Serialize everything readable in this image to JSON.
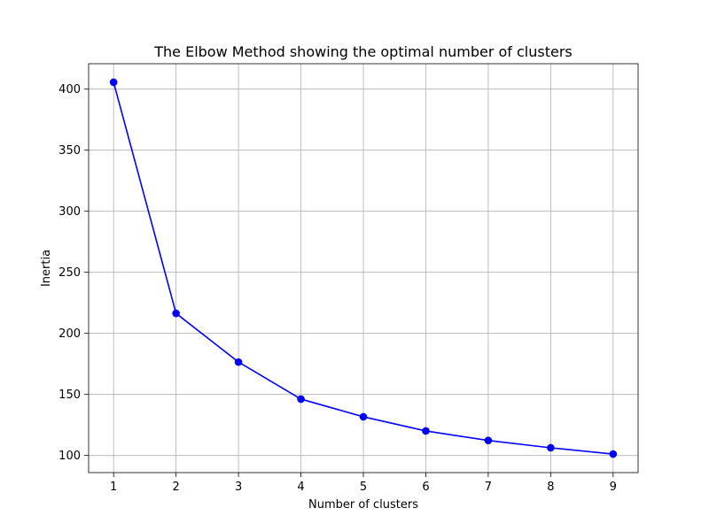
{
  "chart_data": {
    "type": "line",
    "title": "The Elbow Method showing the optimal number of clusters",
    "xlabel": "Number of clusters",
    "ylabel": "Inertia",
    "x": [
      1,
      2,
      3,
      4,
      5,
      6,
      7,
      8,
      9
    ],
    "series": [
      {
        "values": [
          405.6,
          216.4,
          176.5,
          146.2,
          131.7,
          120.1,
          112.3,
          106.3,
          101.2
        ],
        "color": "#0000ff",
        "marker": "circle"
      }
    ],
    "xticks": [
      1,
      2,
      3,
      4,
      5,
      6,
      7,
      8,
      9
    ],
    "yticks": [
      100,
      150,
      200,
      250,
      300,
      350,
      400
    ],
    "xlim": [
      0.6,
      9.4
    ],
    "ylim": [
      86.0,
      420.8
    ],
    "grid": true
  }
}
